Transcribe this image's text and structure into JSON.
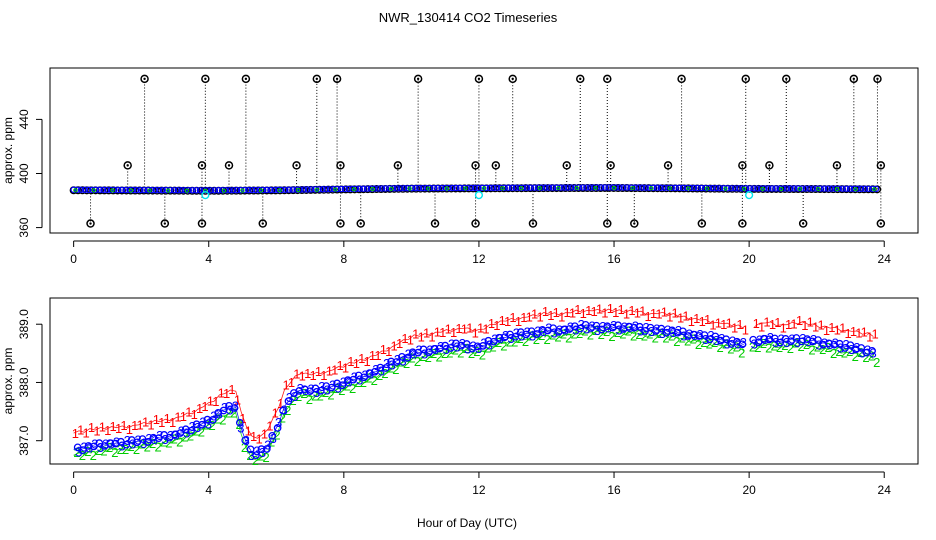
{
  "title": "NWR_130414  CO2 Timeseries",
  "xlabel": "Hour of Day (UTC)",
  "colors": {
    "frame": "#000000",
    "flag_cyan": "#00e5ee",
    "series_1": "#ff0000",
    "series_2": "#00cc00",
    "series_3": "#0000ff",
    "series_4": "#0000aa"
  },
  "chart_data": [
    {
      "type": "scatter",
      "ylabel": "approx. ppm",
      "xlim": [
        -0.7,
        25
      ],
      "ylim": [
        356,
        478
      ],
      "xticks": [
        0,
        4,
        8,
        12,
        16,
        20,
        24
      ],
      "yticks": [
        360,
        400,
        440
      ],
      "grid": false,
      "baseline": [
        [
          0,
          387.6
        ],
        [
          2,
          387.4
        ],
        [
          4,
          387.2
        ],
        [
          6,
          387.5
        ],
        [
          8,
          388.2
        ],
        [
          10,
          388.8
        ],
        [
          12,
          389.0
        ],
        [
          14,
          389.2
        ],
        [
          16,
          389.3
        ],
        [
          18,
          389.0
        ],
        [
          20,
          388.6
        ],
        [
          22,
          388.5
        ],
        [
          23.8,
          388.3
        ]
      ],
      "spikes_high": [
        [
          1.6,
          406
        ],
        [
          2.1,
          470
        ],
        [
          3.8,
          406
        ],
        [
          3.9,
          470
        ],
        [
          4.6,
          406
        ],
        [
          5.1,
          470
        ],
        [
          6.6,
          406
        ],
        [
          7.2,
          470
        ],
        [
          7.8,
          470
        ],
        [
          7.9,
          406
        ],
        [
          9.6,
          406
        ],
        [
          10.2,
          470
        ],
        [
          11.9,
          406
        ],
        [
          12.0,
          470
        ],
        [
          12.5,
          406
        ],
        [
          13.0,
          470
        ],
        [
          14.6,
          406
        ],
        [
          15.0,
          470
        ],
        [
          15.8,
          470
        ],
        [
          15.9,
          406
        ],
        [
          17.6,
          406
        ],
        [
          18.0,
          470
        ],
        [
          19.8,
          406
        ],
        [
          19.9,
          470
        ],
        [
          20.6,
          406
        ],
        [
          21.1,
          470
        ],
        [
          22.6,
          406
        ],
        [
          23.1,
          470
        ],
        [
          23.8,
          470
        ],
        [
          23.9,
          406
        ]
      ],
      "spikes_low": [
        [
          0.5,
          363
        ],
        [
          2.7,
          363
        ],
        [
          3.8,
          363
        ],
        [
          5.6,
          363
        ],
        [
          7.9,
          363
        ],
        [
          8.5,
          363
        ],
        [
          10.7,
          363
        ],
        [
          11.9,
          363
        ],
        [
          13.6,
          363
        ],
        [
          15.8,
          363
        ],
        [
          16.6,
          363
        ],
        [
          18.6,
          363
        ],
        [
          19.8,
          363
        ],
        [
          21.6,
          363
        ],
        [
          23.9,
          363
        ]
      ],
      "flags_cyan": [
        [
          3.9,
          384
        ],
        [
          12.0,
          384
        ],
        [
          20.0,
          384
        ]
      ]
    },
    {
      "type": "line",
      "ylabel": "approx. ppm",
      "xlim": [
        -0.7,
        25
      ],
      "ylim": [
        386.6,
        389.45
      ],
      "xticks": [
        0,
        4,
        8,
        12,
        16,
        20,
        24
      ],
      "yticks": [
        387.0,
        388.0,
        389.0
      ],
      "ytick_labels": [
        "387.0",
        "388.0",
        "389.0"
      ],
      "grid": false,
      "series": [
        {
          "symbol": "1",
          "offset": 0.28
        },
        {
          "symbol": "2",
          "offset": -0.1
        },
        {
          "symbol": "3",
          "offset": 0.0
        }
      ],
      "x": [
        0,
        0.5,
        1,
        1.5,
        2,
        2.5,
        3,
        3.5,
        4,
        4.5,
        4.8,
        5.0,
        5.3,
        5.7,
        6.0,
        6.3,
        6.7,
        7,
        7.5,
        8,
        8.5,
        9,
        9.5,
        10,
        10.5,
        11,
        11.5,
        12,
        12.5,
        13,
        13.5,
        14,
        14.5,
        15,
        15.5,
        16,
        16.5,
        17,
        17.5,
        18,
        18.5,
        19,
        19.5,
        19.9,
        20.1,
        20.5,
        21,
        21.5,
        22,
        22.5,
        23,
        23.5,
        23.8
      ],
      "y": [
        386.85,
        386.9,
        386.95,
        386.95,
        387.0,
        387.05,
        387.1,
        387.2,
        387.35,
        387.55,
        387.6,
        387.1,
        386.75,
        386.85,
        387.2,
        387.65,
        387.9,
        387.85,
        387.9,
        388.0,
        388.1,
        388.2,
        388.35,
        388.5,
        388.55,
        388.6,
        388.65,
        388.6,
        388.75,
        388.8,
        388.85,
        388.9,
        388.9,
        388.95,
        388.95,
        388.95,
        388.95,
        388.9,
        388.9,
        388.85,
        388.8,
        388.75,
        388.7,
        388.65,
        388.7,
        388.75,
        388.7,
        388.75,
        388.7,
        388.65,
        388.6,
        388.55,
        388.5
      ]
    }
  ]
}
